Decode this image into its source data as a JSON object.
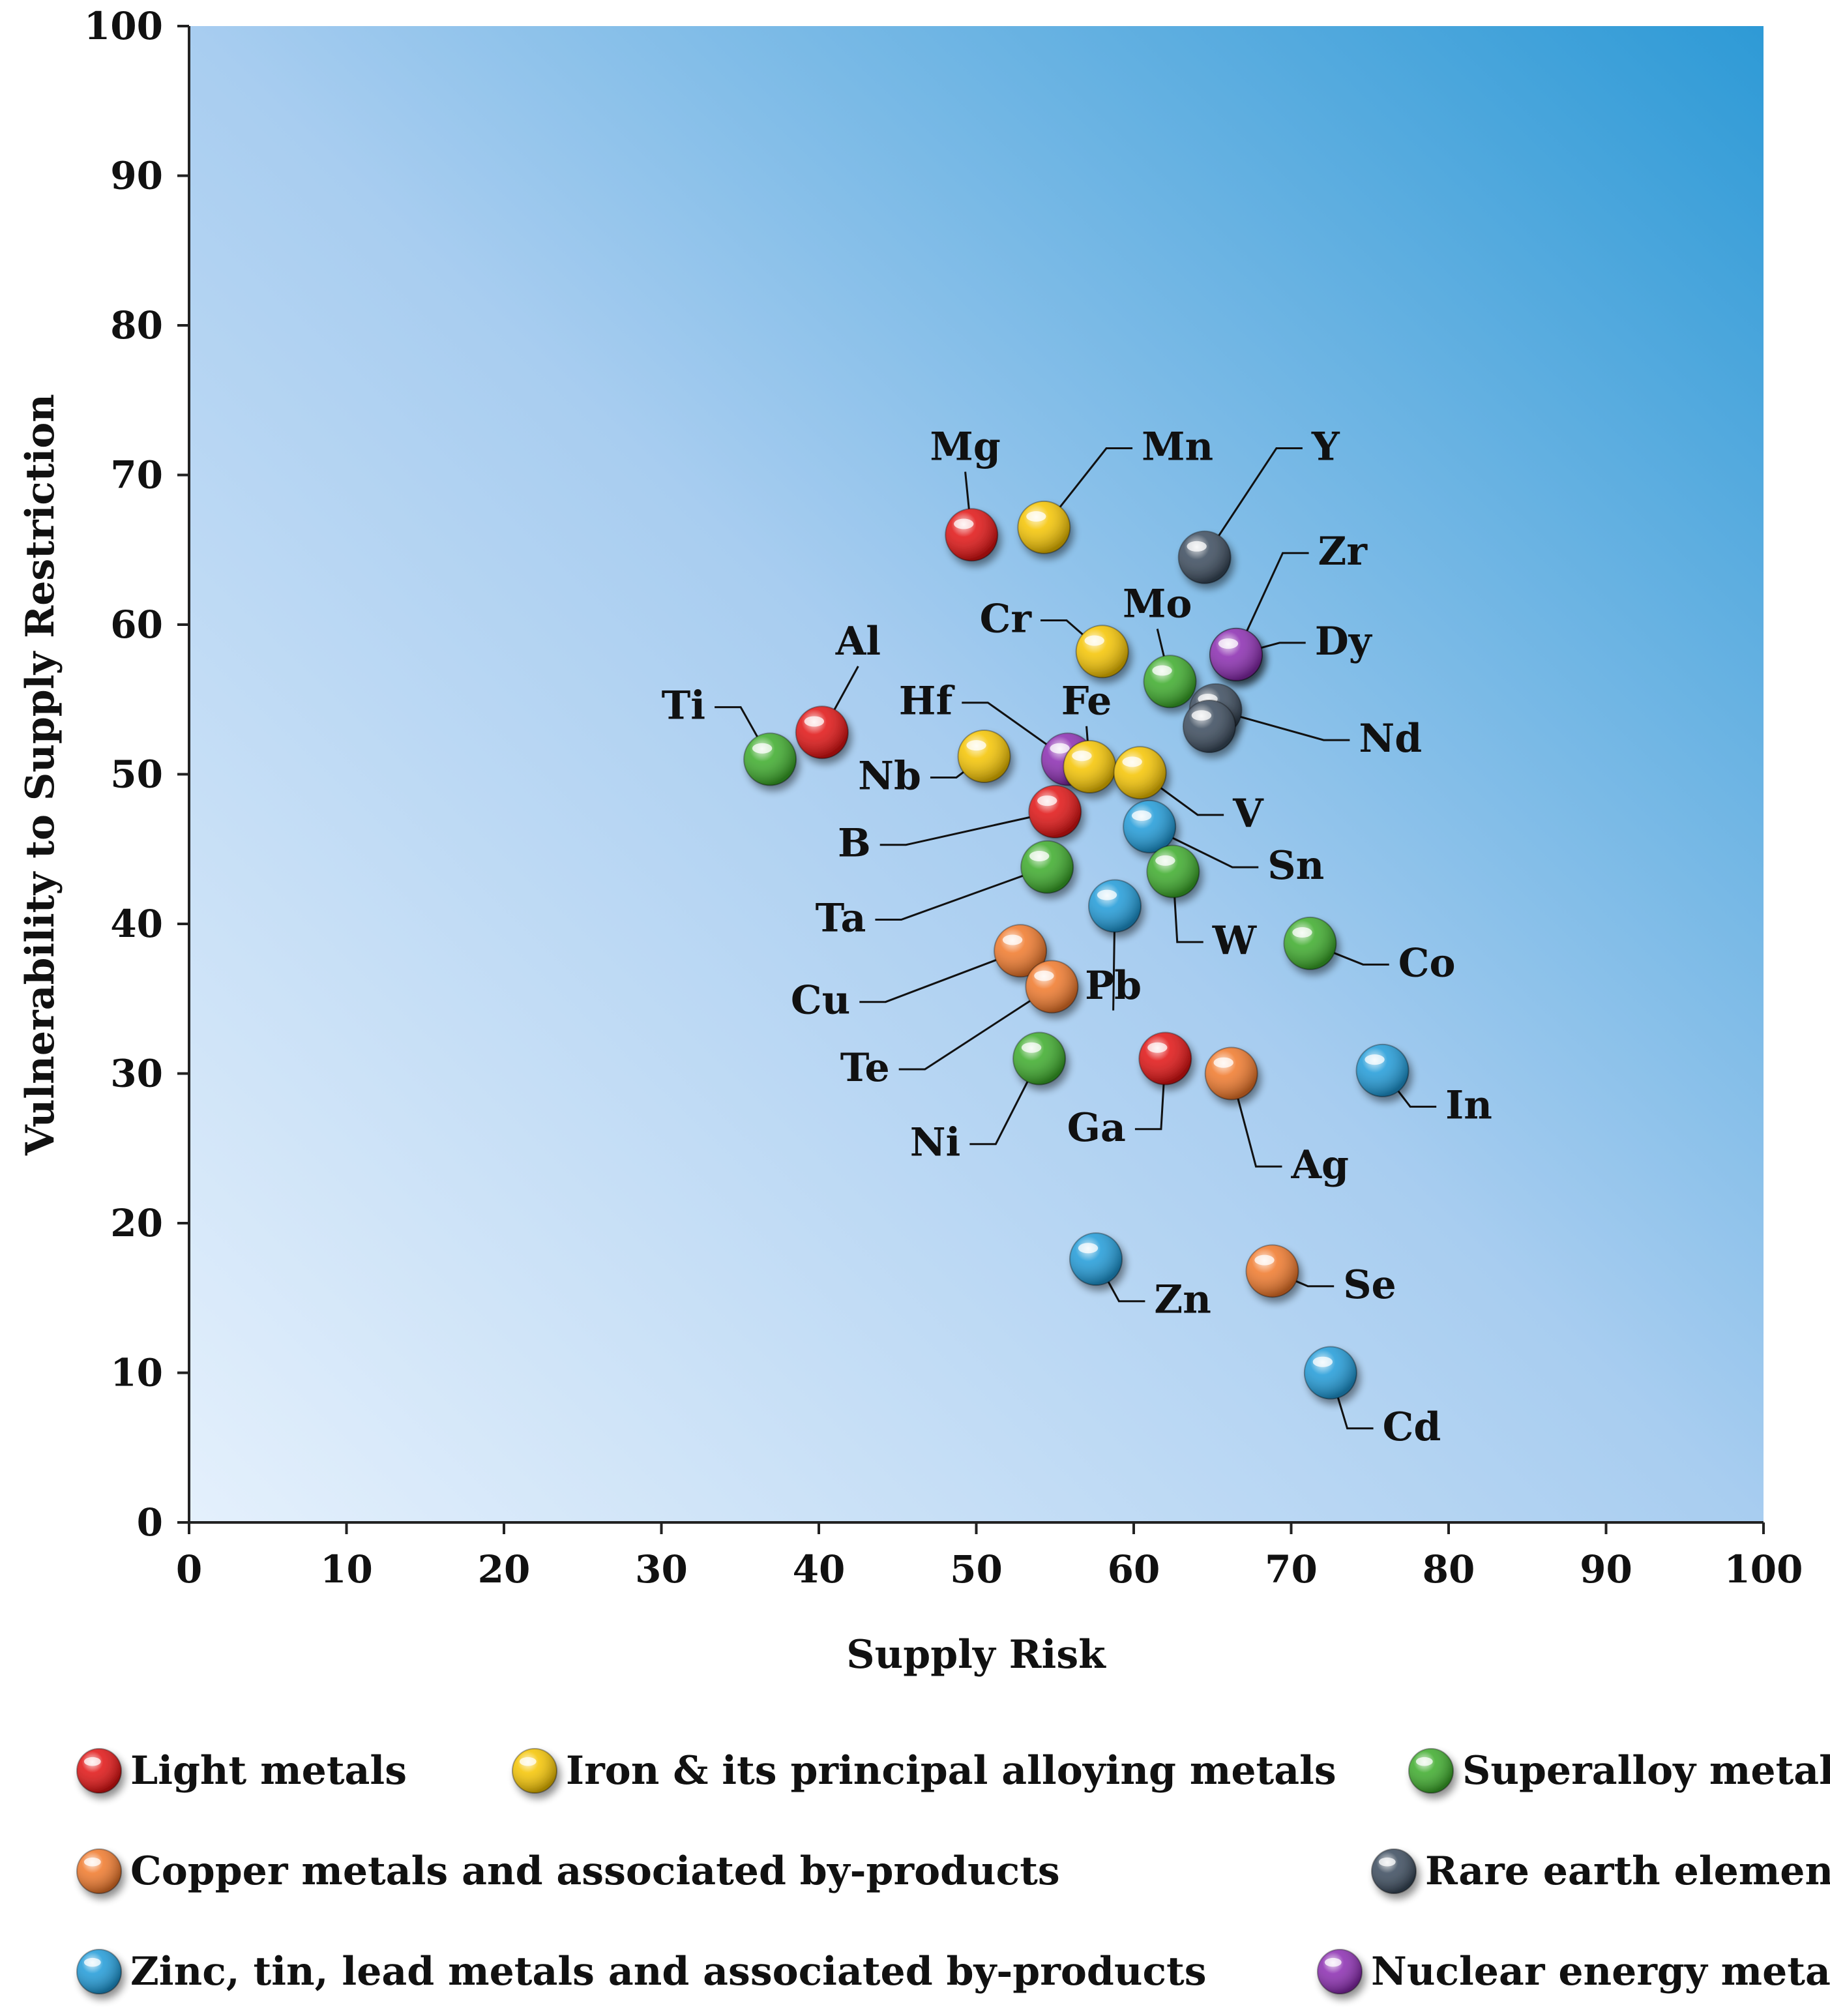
{
  "chart_data": {
    "type": "scatter",
    "title": "",
    "xlabel": "Supply Risk",
    "ylabel": "Vulnerability to Supply Restriction",
    "xlim": [
      0,
      100
    ],
    "ylim": [
      0,
      100
    ],
    "xticks": [
      "0",
      "10",
      "20",
      "30",
      "40",
      "50",
      "60",
      "70",
      "80",
      "90",
      "100"
    ],
    "yticks": [
      "0",
      "10",
      "20",
      "30",
      "40",
      "50",
      "60",
      "70",
      "80",
      "90",
      "100"
    ],
    "grid": false,
    "legend_position": "bottom",
    "groups": [
      {
        "key": "light",
        "name": "Light metals",
        "color": "#e01010"
      },
      {
        "key": "iron",
        "name": "Iron & its principal alloying metals",
        "color": "#f5c400"
      },
      {
        "key": "super",
        "name": "Superalloy metals",
        "color": "#3cab2a"
      },
      {
        "key": "copper",
        "name": "Copper metals and associated by-products",
        "color": "#f0782a"
      },
      {
        "key": "rare",
        "name": "Rare earth elements",
        "color": "#3a4a5c"
      },
      {
        "key": "zinc",
        "name": "Zinc, tin, lead metals and associated by-products",
        "color": "#1e9ad8"
      },
      {
        "key": "nuclear",
        "name": "Nuclear energy metals",
        "color": "#8a2bb0"
      }
    ],
    "points": [
      {
        "label": "Mg",
        "group": "light",
        "x": 49.7,
        "y": 66.0,
        "lx": 49.3,
        "ly": 71.0,
        "la": "middle"
      },
      {
        "label": "Mn",
        "group": "iron",
        "x": 54.3,
        "y": 66.5,
        "lx": 60.5,
        "ly": 71.0,
        "la": "start"
      },
      {
        "label": "Y",
        "group": "rare",
        "x": 64.5,
        "y": 64.5,
        "lx": 71.3,
        "ly": 71.0,
        "la": "start"
      },
      {
        "label": "Zr",
        "group": "nuclear",
        "x": 66.5,
        "y": 58.0,
        "lx": 71.7,
        "ly": 64.0,
        "la": "start"
      },
      {
        "label": "Dy",
        "group": "nuclear",
        "x": 66.5,
        "y": 58.0,
        "lx": 71.5,
        "ly": 58.0,
        "la": "start"
      },
      {
        "label": "Cr",
        "group": "iron",
        "x": 58.0,
        "y": 58.2,
        "lx": 53.5,
        "ly": 59.5,
        "la": "end"
      },
      {
        "label": "Mo",
        "group": "super",
        "x": 62.3,
        "y": 56.2,
        "lx": 61.5,
        "ly": 60.5,
        "la": "middle"
      },
      {
        "label": "Nd",
        "group": "rare",
        "x": 65.2,
        "y": 54.3,
        "lx": 74.3,
        "ly": 51.5,
        "la": "start"
      },
      {
        "label": "Nd-2",
        "group": "rare",
        "x": 64.8,
        "y": 53.2,
        "lx": 0,
        "ly": 0,
        "la": "none"
      },
      {
        "label": "Al",
        "group": "light",
        "x": 40.2,
        "y": 52.8,
        "lx": 42.5,
        "ly": 58.0,
        "la": "middle"
      },
      {
        "label": "Ti",
        "group": "super",
        "x": 36.9,
        "y": 51.0,
        "lx": 32.8,
        "ly": 53.7,
        "la": "end"
      },
      {
        "label": "Hf",
        "group": "nuclear",
        "x": 55.8,
        "y": 51.0,
        "lx": 48.5,
        "ly": 54.0,
        "la": "end"
      },
      {
        "label": "Fe",
        "group": "iron",
        "x": 57.2,
        "y": 50.5,
        "lx": 57.0,
        "ly": 54.0,
        "la": "middle"
      },
      {
        "label": "Nb",
        "group": "iron",
        "x": 50.5,
        "y": 51.2,
        "lx": 46.5,
        "ly": 49.0,
        "la": "end"
      },
      {
        "label": "V",
        "group": "iron",
        "x": 60.4,
        "y": 50.1,
        "lx": 66.3,
        "ly": 46.5,
        "la": "start"
      },
      {
        "label": "B",
        "group": "light",
        "x": 55.0,
        "y": 47.5,
        "lx": 43.3,
        "ly": 44.5,
        "la": "end"
      },
      {
        "label": "Sn",
        "group": "zinc",
        "x": 61.0,
        "y": 46.5,
        "lx": 68.5,
        "ly": 43.0,
        "la": "start"
      },
      {
        "label": "Ta",
        "group": "super",
        "x": 54.5,
        "y": 43.8,
        "lx": 43.0,
        "ly": 39.5,
        "la": "end"
      },
      {
        "label": "W",
        "group": "super",
        "x": 62.5,
        "y": 43.5,
        "lx": 65.0,
        "ly": 38.0,
        "la": "start"
      },
      {
        "label": "Pb",
        "group": "zinc",
        "x": 58.8,
        "y": 41.2,
        "lx": 58.7,
        "ly": 35.0,
        "la": "middle"
      },
      {
        "label": "Co",
        "group": "super",
        "x": 71.2,
        "y": 38.7,
        "lx": 76.8,
        "ly": 36.5,
        "la": "start"
      },
      {
        "label": "Cu",
        "group": "copper",
        "x": 52.8,
        "y": 38.2,
        "lx": 42.0,
        "ly": 34.0,
        "la": "end"
      },
      {
        "label": "Te",
        "group": "copper",
        "x": 54.8,
        "y": 35.8,
        "lx": 44.5,
        "ly": 29.5,
        "la": "end"
      },
      {
        "label": "Ni",
        "group": "super",
        "x": 54.0,
        "y": 31.0,
        "lx": 49.0,
        "ly": 24.5,
        "la": "end"
      },
      {
        "label": "Ga",
        "group": "light",
        "x": 62.0,
        "y": 31.0,
        "lx": 59.5,
        "ly": 25.5,
        "la": "end"
      },
      {
        "label": "Ag",
        "group": "copper",
        "x": 66.2,
        "y": 30.0,
        "lx": 70.0,
        "ly": 23.0,
        "la": "start"
      },
      {
        "label": "In",
        "group": "zinc",
        "x": 75.8,
        "y": 30.2,
        "lx": 79.8,
        "ly": 27.0,
        "la": "start"
      },
      {
        "label": "Zn",
        "group": "zinc",
        "x": 57.6,
        "y": 17.6,
        "lx": 61.3,
        "ly": 14.0,
        "la": "start"
      },
      {
        "label": "Se",
        "group": "copper",
        "x": 68.8,
        "y": 16.8,
        "lx": 73.3,
        "ly": 15.0,
        "la": "start"
      },
      {
        "label": "Cd",
        "group": "zinc",
        "x": 72.5,
        "y": 10.0,
        "lx": 75.8,
        "ly": 5.5,
        "la": "start"
      }
    ]
  }
}
